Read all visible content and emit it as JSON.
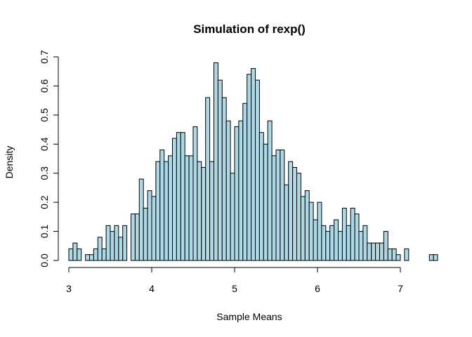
{
  "chart_data": {
    "type": "bar",
    "title": "Simulation of rexp()",
    "xlabel": "Sample Means",
    "ylabel": "Density",
    "xlim": [
      3,
      7.4
    ],
    "ylim": [
      0,
      0.7
    ],
    "xticks": [
      "3",
      "4",
      "5",
      "6",
      "7"
    ],
    "yticks": [
      "0.0",
      "0.1",
      "0.2",
      "0.3",
      "0.4",
      "0.5",
      "0.6",
      "0.7"
    ],
    "bar_color": "#ADD8E6",
    "bin_width": 0.05,
    "bin_start": 3.0,
    "values": [
      0.04,
      0.06,
      0.04,
      0.0,
      0.02,
      0.02,
      0.04,
      0.08,
      0.04,
      0.12,
      0.1,
      0.12,
      0.08,
      0.12,
      0.0,
      0.16,
      0.16,
      0.28,
      0.18,
      0.24,
      0.22,
      0.34,
      0.38,
      0.34,
      0.36,
      0.42,
      0.44,
      0.44,
      0.36,
      0.36,
      0.46,
      0.34,
      0.32,
      0.56,
      0.34,
      0.68,
      0.62,
      0.56,
      0.48,
      0.3,
      0.46,
      0.48,
      0.54,
      0.64,
      0.66,
      0.62,
      0.44,
      0.4,
      0.48,
      0.36,
      0.38,
      0.38,
      0.26,
      0.34,
      0.32,
      0.3,
      0.22,
      0.24,
      0.2,
      0.14,
      0.2,
      0.12,
      0.1,
      0.12,
      0.14,
      0.1,
      0.18,
      0.12,
      0.18,
      0.16,
      0.1,
      0.12,
      0.06,
      0.06,
      0.06,
      0.06,
      0.1,
      0.04,
      0.04,
      0.02,
      0.0,
      0.04,
      0.0,
      0.0,
      0.0,
      0.0,
      0.0,
      0.02,
      0.02
    ]
  }
}
